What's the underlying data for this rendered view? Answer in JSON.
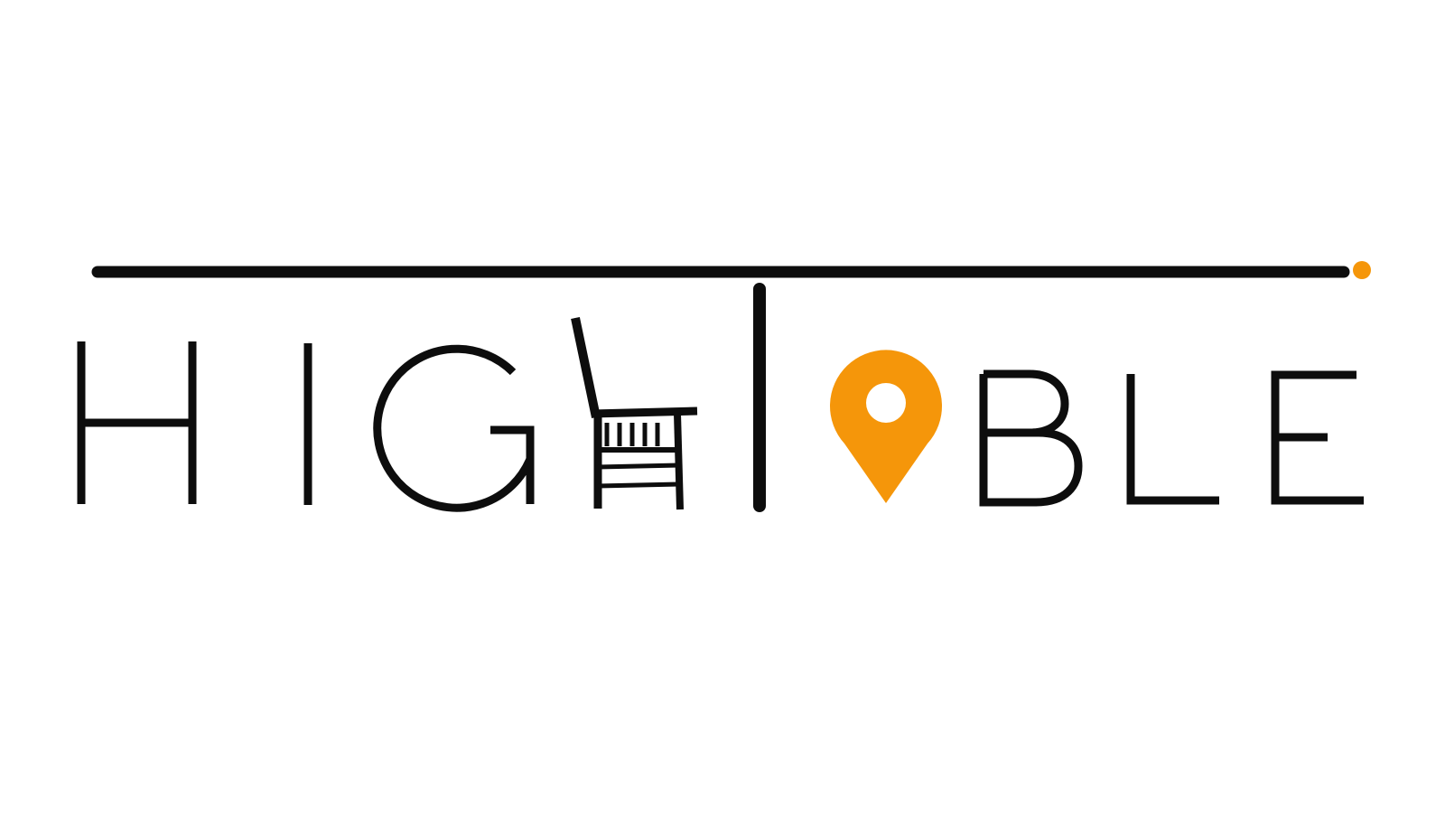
{
  "logo": {
    "wordmark": "HIGHTABLE",
    "colors": {
      "ink": "#0d0d0d",
      "accent": "#f5960a",
      "background": "#ffffff"
    },
    "icons": [
      "chair-icon",
      "location-pin-icon"
    ]
  }
}
